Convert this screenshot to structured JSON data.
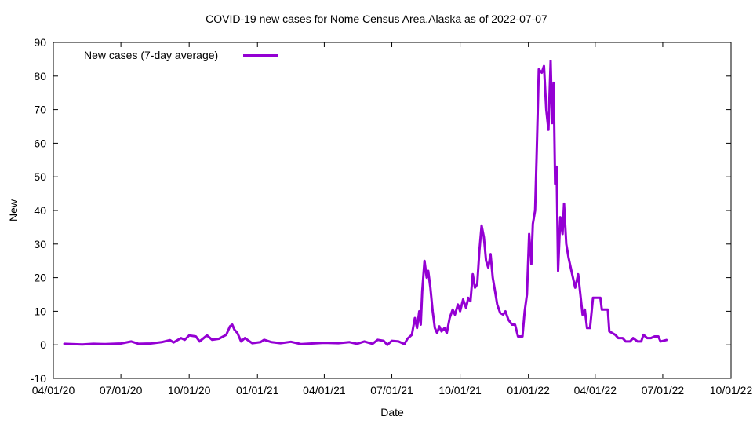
{
  "chart_data": {
    "type": "line",
    "title": "COVID-19 new cases for Nome Census Area,Alaska as of 2022-07-07",
    "xlabel": "Date",
    "ylabel": "New",
    "x_range": [
      "2020-04-01",
      "2022-10-01"
    ],
    "ylim": [
      -10,
      90
    ],
    "y_ticks": [
      -10,
      0,
      10,
      20,
      30,
      40,
      50,
      60,
      70,
      80,
      90
    ],
    "x_ticks": [
      {
        "date": "2020-04-01",
        "label": "04/01/20"
      },
      {
        "date": "2020-07-01",
        "label": "07/01/20"
      },
      {
        "date": "2020-10-01",
        "label": "10/01/20"
      },
      {
        "date": "2021-01-01",
        "label": "01/01/21"
      },
      {
        "date": "2021-04-01",
        "label": "04/01/21"
      },
      {
        "date": "2021-07-01",
        "label": "07/01/21"
      },
      {
        "date": "2021-10-01",
        "label": "10/01/21"
      },
      {
        "date": "2022-01-01",
        "label": "01/01/22"
      },
      {
        "date": "2022-04-01",
        "label": "04/01/22"
      },
      {
        "date": "2022-07-01",
        "label": "07/01/22"
      },
      {
        "date": "2022-10-01",
        "label": "10/01/22"
      }
    ],
    "grid": false,
    "legend_position": "top-left",
    "series": [
      {
        "name": "New cases (7-day average)",
        "color": "#9400d3",
        "points": [
          [
            "2020-04-15",
            0.3
          ],
          [
            "2020-05-10",
            0.1
          ],
          [
            "2020-05-25",
            0.3
          ],
          [
            "2020-06-10",
            0.2
          ],
          [
            "2020-07-01",
            0.4
          ],
          [
            "2020-07-15",
            1.0
          ],
          [
            "2020-07-25",
            0.3
          ],
          [
            "2020-08-10",
            0.4
          ],
          [
            "2020-08-25",
            0.8
          ],
          [
            "2020-09-05",
            1.4
          ],
          [
            "2020-09-10",
            0.7
          ],
          [
            "2020-09-20",
            2.0
          ],
          [
            "2020-09-25",
            1.5
          ],
          [
            "2020-10-01",
            2.8
          ],
          [
            "2020-10-10",
            2.5
          ],
          [
            "2020-10-15",
            1.0
          ],
          [
            "2020-10-25",
            2.8
          ],
          [
            "2020-11-01",
            1.5
          ],
          [
            "2020-11-10",
            1.8
          ],
          [
            "2020-11-20",
            3.0
          ],
          [
            "2020-11-25",
            5.5
          ],
          [
            "2020-11-28",
            6.0
          ],
          [
            "2020-12-01",
            4.5
          ],
          [
            "2020-12-05",
            3.5
          ],
          [
            "2020-12-10",
            1.0
          ],
          [
            "2020-12-15",
            2.0
          ],
          [
            "2020-12-25",
            0.5
          ],
          [
            "2021-01-05",
            0.8
          ],
          [
            "2021-01-10",
            1.5
          ],
          [
            "2021-01-20",
            0.8
          ],
          [
            "2021-02-01",
            0.5
          ],
          [
            "2021-02-15",
            0.9
          ],
          [
            "2021-03-01",
            0.2
          ],
          [
            "2021-03-15",
            0.4
          ],
          [
            "2021-04-01",
            0.6
          ],
          [
            "2021-04-20",
            0.5
          ],
          [
            "2021-05-05",
            0.8
          ],
          [
            "2021-05-15",
            0.3
          ],
          [
            "2021-05-25",
            1.0
          ],
          [
            "2021-06-05",
            0.3
          ],
          [
            "2021-06-12",
            1.5
          ],
          [
            "2021-06-20",
            1.2
          ],
          [
            "2021-06-25",
            0.0
          ],
          [
            "2021-07-01",
            1.2
          ],
          [
            "2021-07-10",
            1.0
          ],
          [
            "2021-07-18",
            0.2
          ],
          [
            "2021-07-22",
            1.8
          ],
          [
            "2021-07-28",
            3.0
          ],
          [
            "2021-08-01",
            8.0
          ],
          [
            "2021-08-04",
            5.0
          ],
          [
            "2021-08-07",
            10.0
          ],
          [
            "2021-08-09",
            6.0
          ],
          [
            "2021-08-11",
            16.0
          ],
          [
            "2021-08-14",
            25.0
          ],
          [
            "2021-08-17",
            20.0
          ],
          [
            "2021-08-19",
            22.0
          ],
          [
            "2021-08-22",
            17.0
          ],
          [
            "2021-08-25",
            10.0
          ],
          [
            "2021-08-28",
            5.0
          ],
          [
            "2021-08-31",
            3.5
          ],
          [
            "2021-09-03",
            5.5
          ],
          [
            "2021-09-06",
            4.0
          ],
          [
            "2021-09-10",
            5.0
          ],
          [
            "2021-09-13",
            3.5
          ],
          [
            "2021-09-17",
            8.0
          ],
          [
            "2021-09-21",
            10.5
          ],
          [
            "2021-09-24",
            9.0
          ],
          [
            "2021-09-28",
            12.0
          ],
          [
            "2021-10-01",
            10.0
          ],
          [
            "2021-10-05",
            13.5
          ],
          [
            "2021-10-09",
            11.0
          ],
          [
            "2021-10-12",
            14.0
          ],
          [
            "2021-10-15",
            13.0
          ],
          [
            "2021-10-18",
            21.0
          ],
          [
            "2021-10-21",
            17.0
          ],
          [
            "2021-10-24",
            18.0
          ],
          [
            "2021-10-27",
            28.0
          ],
          [
            "2021-10-30",
            35.5
          ],
          [
            "2021-11-02",
            32.0
          ],
          [
            "2021-11-05",
            25.0
          ],
          [
            "2021-11-08",
            23.0
          ],
          [
            "2021-11-11",
            27.0
          ],
          [
            "2021-11-14",
            20.0
          ],
          [
            "2021-11-17",
            16.0
          ],
          [
            "2021-11-20",
            12.0
          ],
          [
            "2021-11-24",
            9.5
          ],
          [
            "2021-11-28",
            9.0
          ],
          [
            "2021-12-01",
            10.0
          ],
          [
            "2021-12-05",
            7.5
          ],
          [
            "2021-12-10",
            6.0
          ],
          [
            "2021-12-14",
            6.0
          ],
          [
            "2021-12-18",
            2.5
          ],
          [
            "2021-12-24",
            2.5
          ],
          [
            "2021-12-27",
            10.0
          ],
          [
            "2021-12-30",
            15.0
          ],
          [
            "2022-01-02",
            33.0
          ],
          [
            "2022-01-05",
            24.0
          ],
          [
            "2022-01-07",
            36.0
          ],
          [
            "2022-01-10",
            40.0
          ],
          [
            "2022-01-12",
            56.0
          ],
          [
            "2022-01-15",
            82.0
          ],
          [
            "2022-01-19",
            81.0
          ],
          [
            "2022-01-22",
            83.0
          ],
          [
            "2022-01-25",
            70.0
          ],
          [
            "2022-01-28",
            64.0
          ],
          [
            "2022-01-31",
            84.5
          ],
          [
            "2022-02-02",
            66.0
          ],
          [
            "2022-02-04",
            78.0
          ],
          [
            "2022-02-06",
            48.0
          ],
          [
            "2022-02-08",
            53.0
          ],
          [
            "2022-02-10",
            22.0
          ],
          [
            "2022-02-13",
            38.0
          ],
          [
            "2022-02-16",
            33.0
          ],
          [
            "2022-02-18",
            42.0
          ],
          [
            "2022-02-21",
            30.0
          ],
          [
            "2022-02-24",
            26.0
          ],
          [
            "2022-02-28",
            22.0
          ],
          [
            "2022-03-05",
            17.0
          ],
          [
            "2022-03-09",
            21.0
          ],
          [
            "2022-03-12",
            15.0
          ],
          [
            "2022-03-15",
            9.0
          ],
          [
            "2022-03-18",
            10.5
          ],
          [
            "2022-03-21",
            5.0
          ],
          [
            "2022-03-25",
            5.0
          ],
          [
            "2022-03-29",
            14.0
          ],
          [
            "2022-04-08",
            14.0
          ],
          [
            "2022-04-10",
            10.5
          ],
          [
            "2022-04-18",
            10.5
          ],
          [
            "2022-04-20",
            4.0
          ],
          [
            "2022-04-28",
            3.0
          ],
          [
            "2022-05-02",
            2.0
          ],
          [
            "2022-05-08",
            2.0
          ],
          [
            "2022-05-12",
            1.0
          ],
          [
            "2022-05-18",
            1.0
          ],
          [
            "2022-05-22",
            2.0
          ],
          [
            "2022-05-28",
            1.0
          ],
          [
            "2022-06-02",
            1.0
          ],
          [
            "2022-06-05",
            3.0
          ],
          [
            "2022-06-10",
            2.0
          ],
          [
            "2022-06-15",
            2.0
          ],
          [
            "2022-06-20",
            2.5
          ],
          [
            "2022-06-25",
            2.5
          ],
          [
            "2022-06-28",
            1.0
          ],
          [
            "2022-07-07",
            1.5
          ]
        ]
      }
    ]
  }
}
